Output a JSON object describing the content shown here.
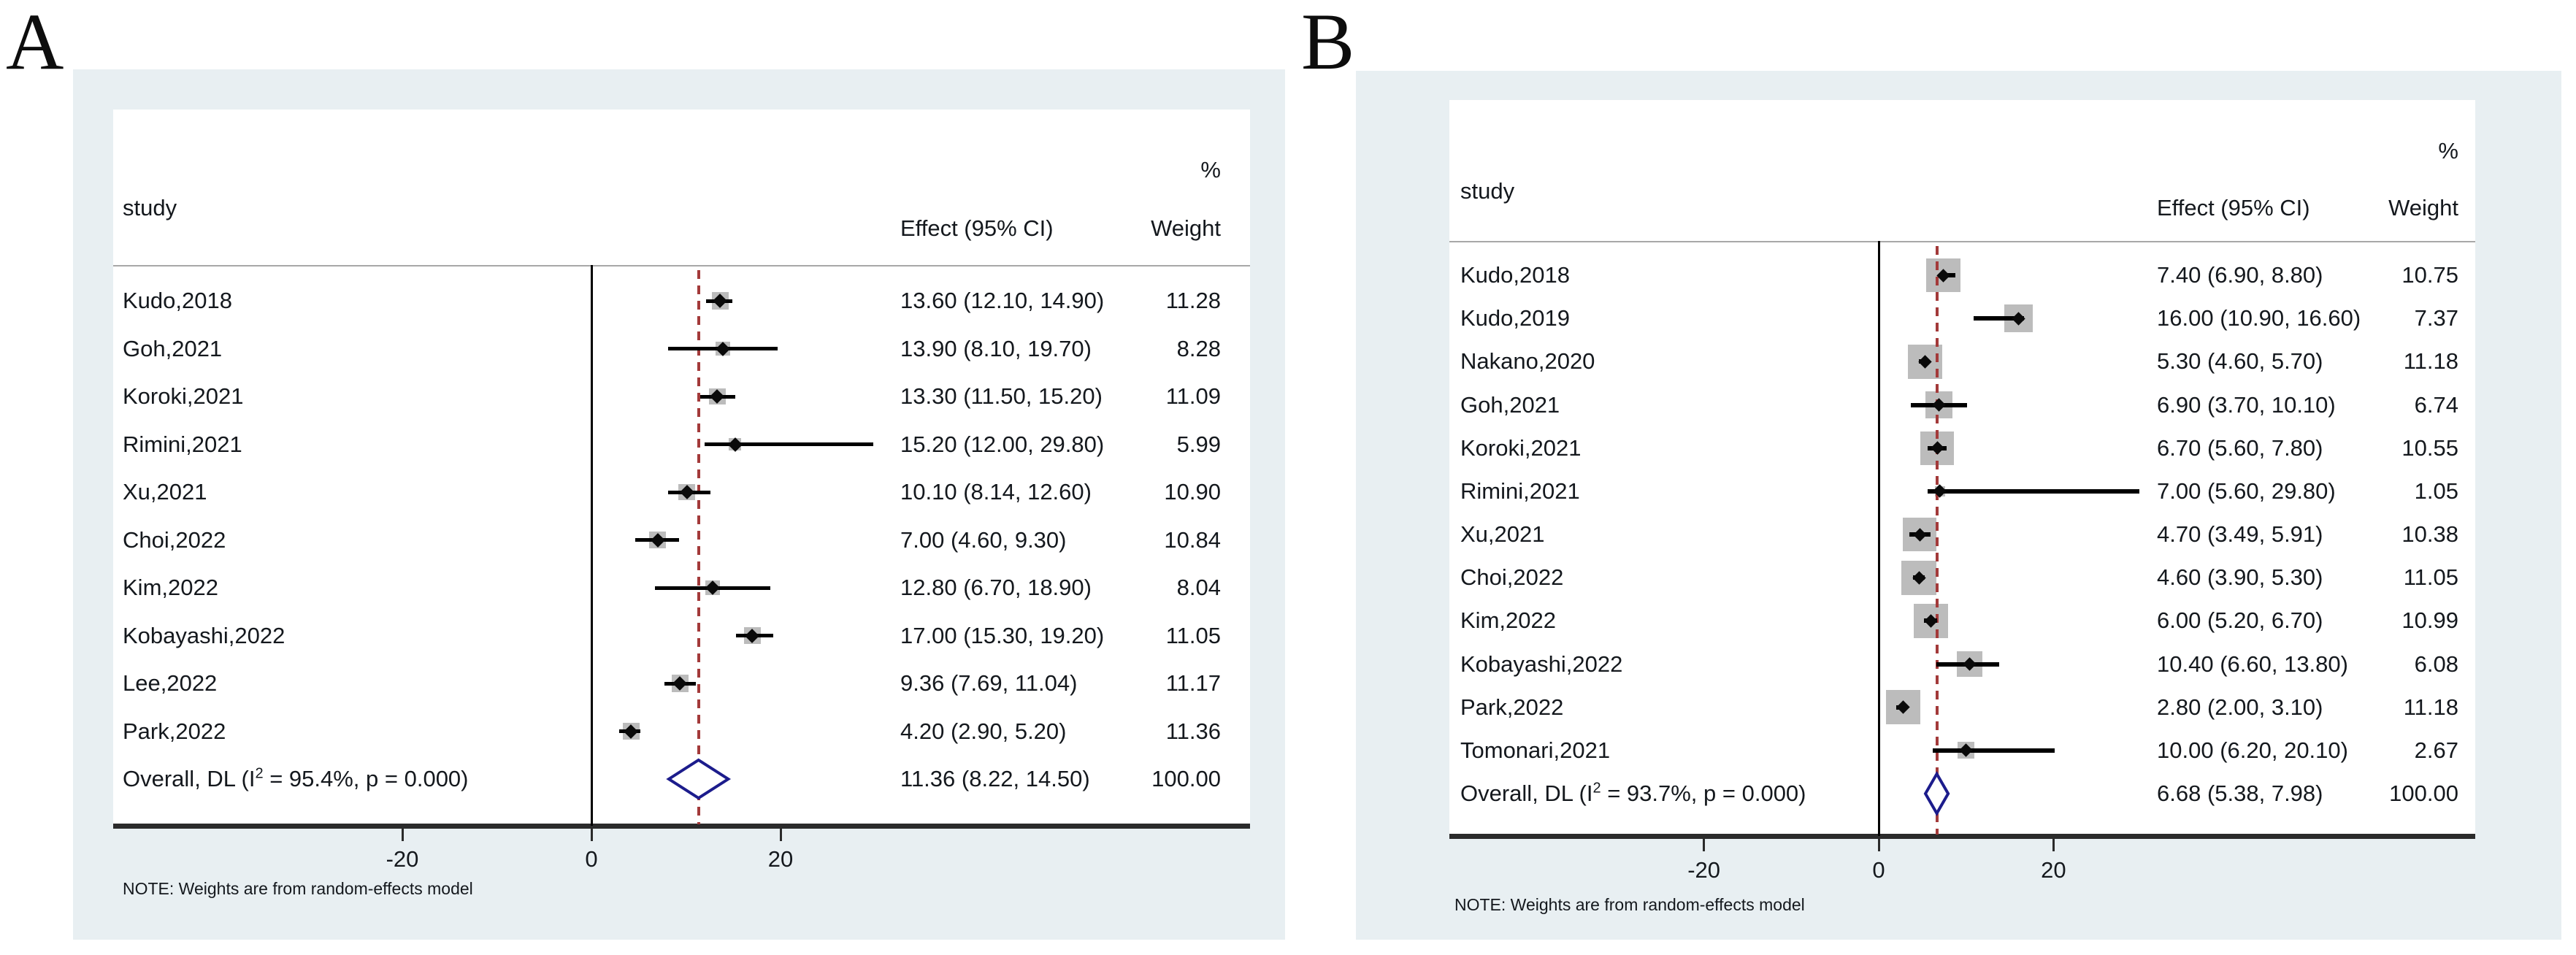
{
  "colors": {
    "panel_background": "#e8eff2",
    "plot_background": "#ffffff",
    "weight_box": "#bcbcbc",
    "ci_line": "#000000",
    "zero_line": "#000000",
    "overall_dashed_line": "#a33a3a",
    "diamond_outline": "#1c1c8c",
    "axis_line": "#2b2b2b",
    "header_separator": "#a8a8a8",
    "text": "#14181d"
  },
  "chart_data": [
    {
      "type": "forest",
      "panel_label": "A",
      "col_headers": {
        "study": "study",
        "effect": "Effect (95% CI)",
        "weight_percent_symbol": "%",
        "weight": "Weight"
      },
      "x_axis": {
        "ticks": [
          -20,
          0,
          20
        ],
        "tick_labels": [
          "-20",
          "0",
          "20"
        ],
        "zero_line_x": 0
      },
      "legend_position": "none",
      "grid": false,
      "note": "NOTE: Weights are from random-effects model",
      "model": "random-effects (DL)",
      "studies": [
        {
          "name": "Kudo,2018",
          "effect": 13.6,
          "ci_lower": 12.1,
          "ci_upper": 14.9,
          "weight": 11.28,
          "effect_label": "13.60 (12.10, 14.90)",
          "weight_label": "11.28"
        },
        {
          "name": "Goh,2021",
          "effect": 13.9,
          "ci_lower": 8.1,
          "ci_upper": 19.7,
          "weight": 8.28,
          "effect_label": "13.90 (8.10, 19.70)",
          "weight_label": "8.28"
        },
        {
          "name": "Koroki,2021",
          "effect": 13.3,
          "ci_lower": 11.5,
          "ci_upper": 15.2,
          "weight": 11.09,
          "effect_label": "13.30 (11.50, 15.20)",
          "weight_label": "11.09"
        },
        {
          "name": "Rimini,2021",
          "effect": 15.2,
          "ci_lower": 12.0,
          "ci_upper": 29.8,
          "weight": 5.99,
          "effect_label": "15.20 (12.00, 29.80)",
          "weight_label": "5.99"
        },
        {
          "name": "Xu,2021",
          "effect": 10.1,
          "ci_lower": 8.14,
          "ci_upper": 12.6,
          "weight": 10.9,
          "effect_label": "10.10 (8.14, 12.60)",
          "weight_label": "10.90"
        },
        {
          "name": "Choi,2022",
          "effect": 7.0,
          "ci_lower": 4.6,
          "ci_upper": 9.3,
          "weight": 10.84,
          "effect_label": "7.00 (4.60, 9.30)",
          "weight_label": "10.84"
        },
        {
          "name": "Kim,2022",
          "effect": 12.8,
          "ci_lower": 6.7,
          "ci_upper": 18.9,
          "weight": 8.04,
          "effect_label": "12.80 (6.70, 18.90)",
          "weight_label": "8.04"
        },
        {
          "name": "Kobayashi,2022",
          "effect": 17.0,
          "ci_lower": 15.3,
          "ci_upper": 19.2,
          "weight": 11.05,
          "effect_label": "17.00 (15.30, 19.20)",
          "weight_label": "11.05"
        },
        {
          "name": "Lee,2022",
          "effect": 9.36,
          "ci_lower": 7.69,
          "ci_upper": 11.04,
          "weight": 11.17,
          "effect_label": "9.36 (7.69, 11.04)",
          "weight_label": "11.17"
        },
        {
          "name": "Park,2022",
          "effect": 4.2,
          "ci_lower": 2.9,
          "ci_upper": 5.2,
          "weight": 11.36,
          "effect_label": "4.20 (2.90, 5.20)",
          "weight_label": "11.36"
        }
      ],
      "overall": {
        "label_prefix": "Overall, DL (I",
        "label_sup": "2",
        "label_suffix": " = 95.4%, p = 0.000)",
        "i_squared": "95.4%",
        "p_value": "0.000",
        "effect": 11.36,
        "ci_lower": 8.22,
        "ci_upper": 14.5,
        "effect_label": "11.36 (8.22, 14.50)",
        "weight_label": "100.00"
      }
    },
    {
      "type": "forest",
      "panel_label": "B",
      "col_headers": {
        "study": "study",
        "effect": "Effect (95% CI)",
        "weight_percent_symbol": "%",
        "weight": "Weight"
      },
      "x_axis": {
        "ticks": [
          -20,
          0,
          20
        ],
        "tick_labels": [
          "-20",
          "0",
          "20"
        ],
        "zero_line_x": 0
      },
      "legend_position": "none",
      "grid": false,
      "note": "NOTE: Weights are from random-effects model",
      "model": "random-effects (DL)",
      "studies": [
        {
          "name": "Kudo,2018",
          "effect": 7.4,
          "ci_lower": 6.9,
          "ci_upper": 8.8,
          "weight": 10.75,
          "effect_label": "7.40 (6.90, 8.80)",
          "weight_label": "10.75"
        },
        {
          "name": "Kudo,2019",
          "effect": 16.0,
          "ci_lower": 10.9,
          "ci_upper": 16.6,
          "weight": 7.37,
          "effect_label": "16.00 (10.90, 16.60)",
          "weight_label": "7.37"
        },
        {
          "name": "Nakano,2020",
          "effect": 5.3,
          "ci_lower": 4.6,
          "ci_upper": 5.7,
          "weight": 11.18,
          "effect_label": "5.30 (4.60, 5.70)",
          "weight_label": "11.18"
        },
        {
          "name": "Goh,2021",
          "effect": 6.9,
          "ci_lower": 3.7,
          "ci_upper": 10.1,
          "weight": 6.74,
          "effect_label": "6.90 (3.70, 10.10)",
          "weight_label": "6.74"
        },
        {
          "name": "Koroki,2021",
          "effect": 6.7,
          "ci_lower": 5.6,
          "ci_upper": 7.8,
          "weight": 10.55,
          "effect_label": "6.70 (5.60, 7.80)",
          "weight_label": "10.55"
        },
        {
          "name": "Rimini,2021",
          "effect": 7.0,
          "ci_lower": 5.6,
          "ci_upper": 29.8,
          "weight": 1.05,
          "effect_label": "7.00 (5.60, 29.80)",
          "weight_label": "1.05"
        },
        {
          "name": "Xu,2021",
          "effect": 4.7,
          "ci_lower": 3.49,
          "ci_upper": 5.91,
          "weight": 10.38,
          "effect_label": "4.70 (3.49, 5.91)",
          "weight_label": "10.38"
        },
        {
          "name": "Choi,2022",
          "effect": 4.6,
          "ci_lower": 3.9,
          "ci_upper": 5.3,
          "weight": 11.05,
          "effect_label": "4.60 (3.90, 5.30)",
          "weight_label": "11.05"
        },
        {
          "name": "Kim,2022",
          "effect": 6.0,
          "ci_lower": 5.2,
          "ci_upper": 6.7,
          "weight": 10.99,
          "effect_label": "6.00 (5.20, 6.70)",
          "weight_label": "10.99"
        },
        {
          "name": "Kobayashi,2022",
          "effect": 10.4,
          "ci_lower": 6.6,
          "ci_upper": 13.8,
          "weight": 6.08,
          "effect_label": "10.40 (6.60, 13.80)",
          "weight_label": "6.08"
        },
        {
          "name": "Park,2022",
          "effect": 2.8,
          "ci_lower": 2.0,
          "ci_upper": 3.1,
          "weight": 11.18,
          "effect_label": "2.80 (2.00, 3.10)",
          "weight_label": "11.18"
        },
        {
          "name": "Tomonari,2021",
          "effect": 10.0,
          "ci_lower": 6.2,
          "ci_upper": 20.1,
          "weight": 2.67,
          "effect_label": "10.00 (6.20, 20.10)",
          "weight_label": "2.67"
        }
      ],
      "overall": {
        "label_prefix": "Overall, DL (I",
        "label_sup": "2",
        "label_suffix": " = 93.7%, p = 0.000)",
        "i_squared": "93.7%",
        "p_value": "0.000",
        "effect": 6.68,
        "ci_lower": 5.38,
        "ci_upper": 7.98,
        "effect_label": "6.68 (5.38, 7.98)",
        "weight_label": "100.00"
      }
    }
  ]
}
